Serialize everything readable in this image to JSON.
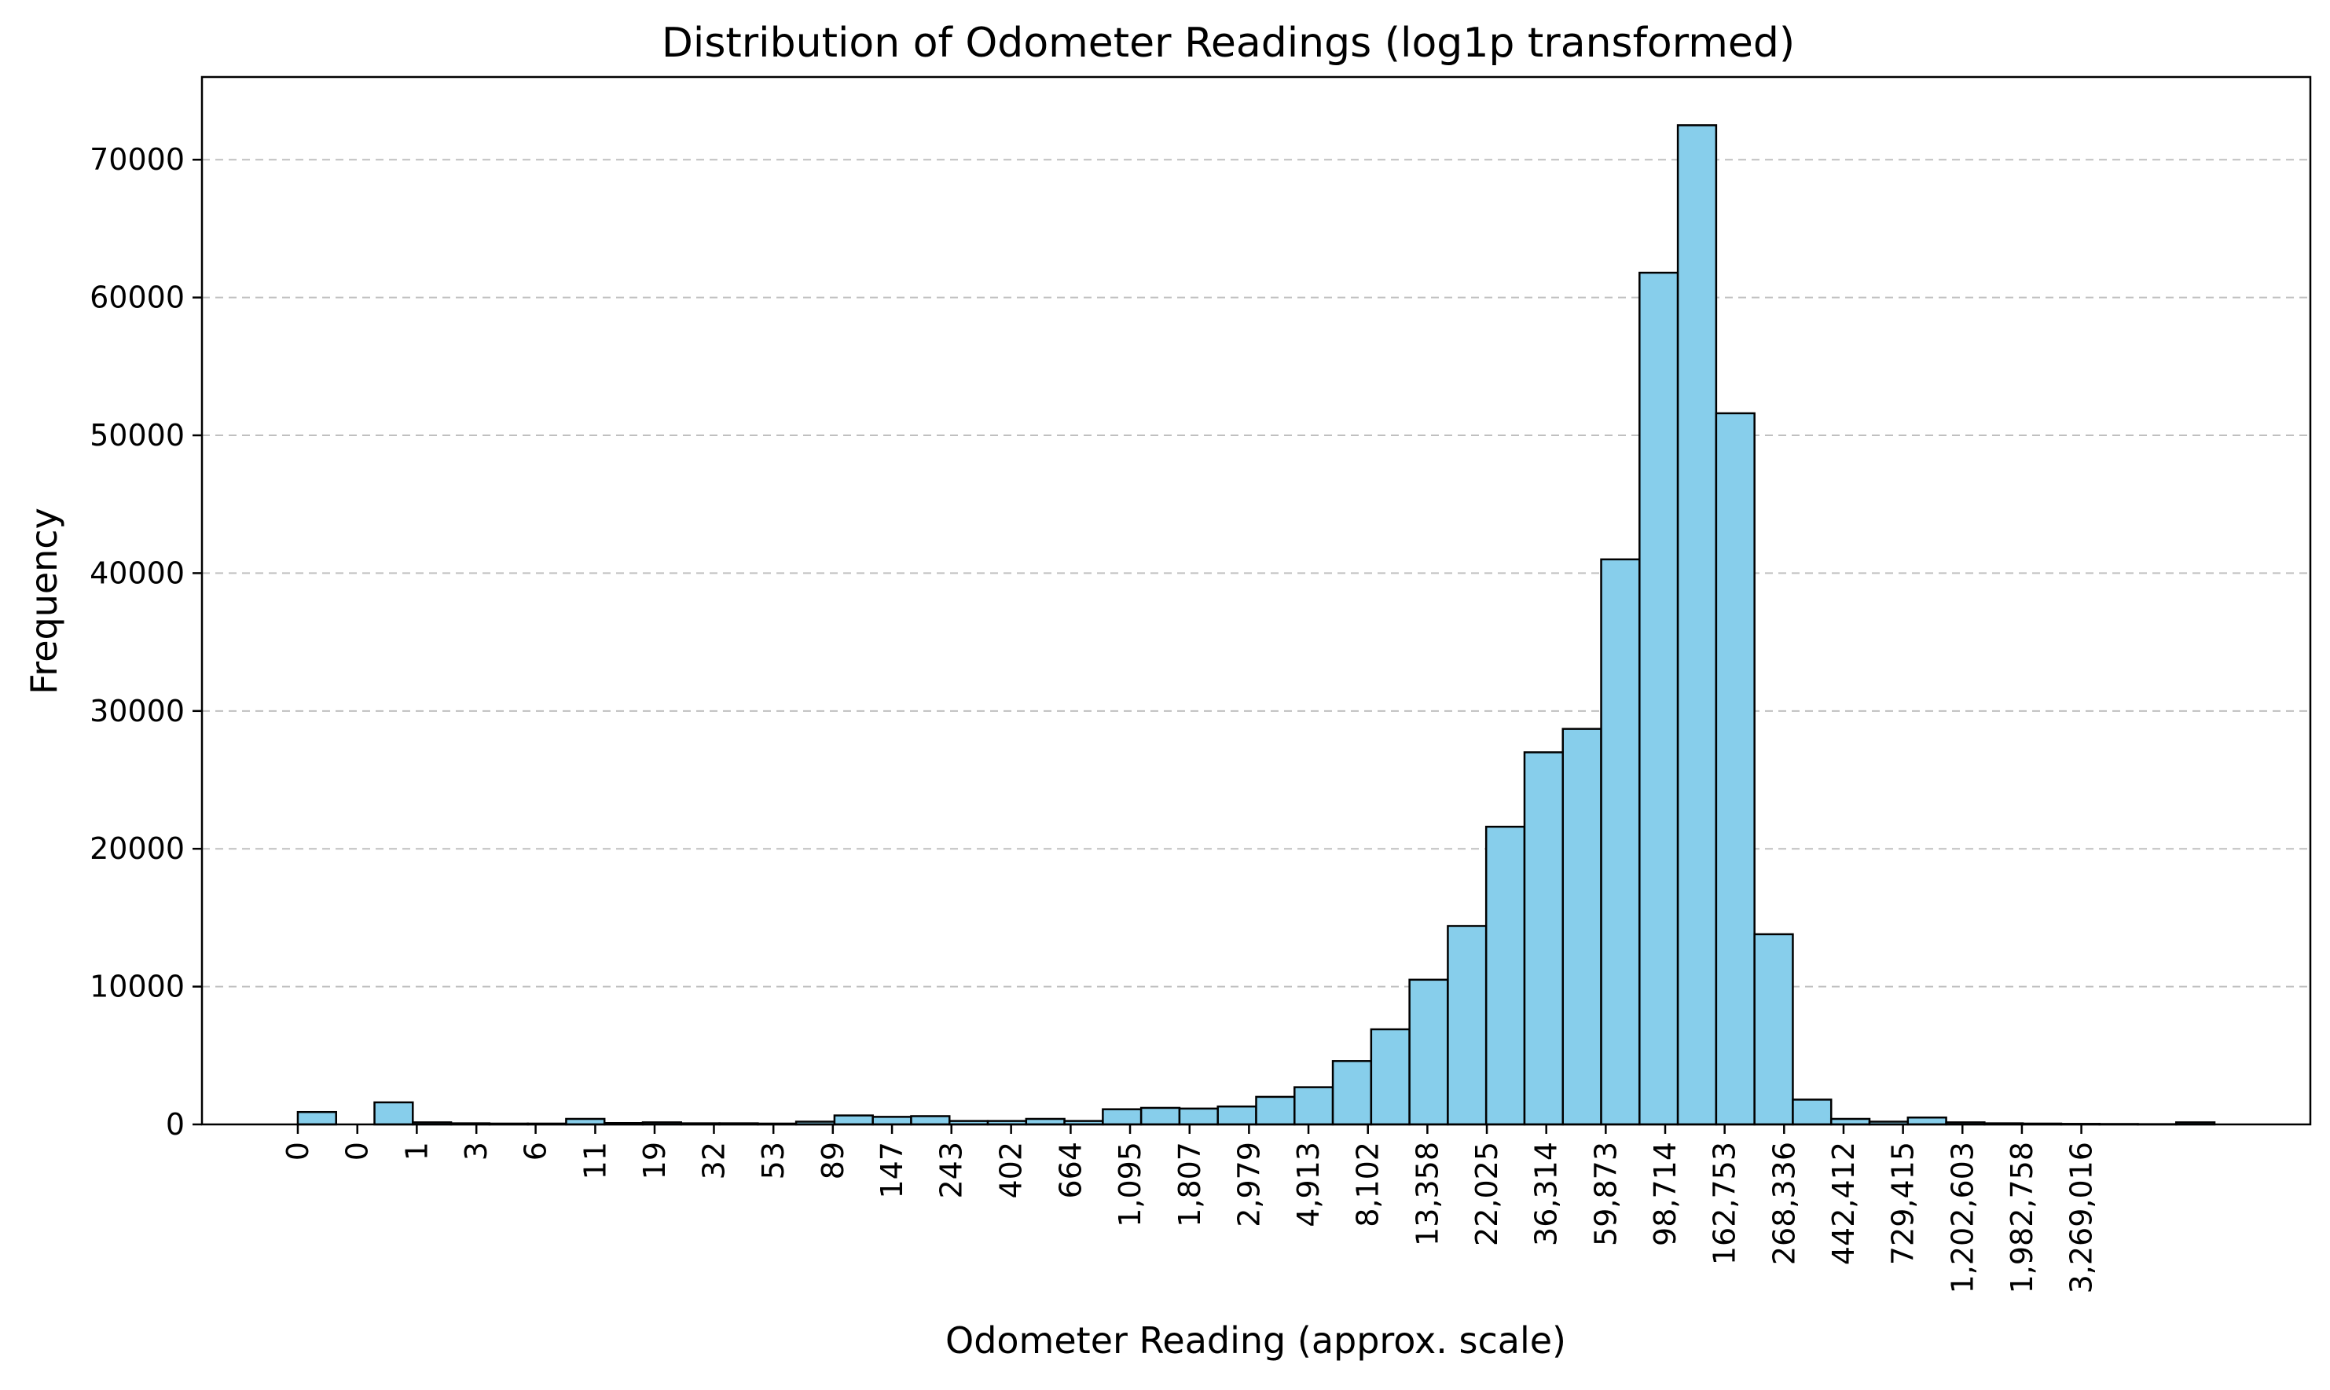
{
  "chart_data": {
    "type": "bar",
    "title": "Distribution of Odometer Readings (log1p transformed)",
    "xlabel": "Odometer Reading (approx. scale)",
    "ylabel": "Frequency",
    "x_scale": "log1p",
    "ylim": [
      0,
      76000
    ],
    "yticks": [
      0,
      10000,
      20000,
      30000,
      40000,
      50000,
      60000,
      70000
    ],
    "xticks": [
      {
        "label": "0",
        "value": 0
      },
      {
        "label": "0",
        "value": 0.65
      },
      {
        "label": "1",
        "value": 1.72
      },
      {
        "label": "3",
        "value": 3.49
      },
      {
        "label": "6",
        "value": 6.39
      },
      {
        "label": "11",
        "value": 11.2
      },
      {
        "label": "19",
        "value": 19.1
      },
      {
        "label": "32",
        "value": 32.1
      },
      {
        "label": "53",
        "value": 53.6
      },
      {
        "label": "89",
        "value": 89.0
      },
      {
        "label": "147",
        "value": 147
      },
      {
        "label": "243",
        "value": 243
      },
      {
        "label": "402",
        "value": 402
      },
      {
        "label": "664",
        "value": 664
      },
      {
        "label": "1,095",
        "value": 1095
      },
      {
        "label": "1,807",
        "value": 1807
      },
      {
        "label": "2,979",
        "value": 2979
      },
      {
        "label": "4,913",
        "value": 4913
      },
      {
        "label": "8,102",
        "value": 8102
      },
      {
        "label": "13,358",
        "value": 13358
      },
      {
        "label": "22,025",
        "value": 22025
      },
      {
        "label": "36,314",
        "value": 36314
      },
      {
        "label": "59,873",
        "value": 59873
      },
      {
        "label": "98,714",
        "value": 98714
      },
      {
        "label": "162,753",
        "value": 162753
      },
      {
        "label": "268,336",
        "value": 268336
      },
      {
        "label": "442,412",
        "value": 442412
      },
      {
        "label": "729,415",
        "value": 729415
      },
      {
        "label": "1,202,603",
        "value": 1202603
      },
      {
        "label": "1,982,758",
        "value": 1982758
      },
      {
        "label": "3,269,016",
        "value": 3269016
      }
    ],
    "bins_log1p": {
      "start": 0,
      "end": 16.12,
      "count": 50
    },
    "values": [
      900,
      0,
      1600,
      150,
      80,
      60,
      60,
      400,
      100,
      150,
      80,
      80,
      60,
      200,
      650,
      550,
      600,
      250,
      250,
      400,
      250,
      1100,
      1200,
      1150,
      1300,
      2000,
      2700,
      4600,
      6900,
      10500,
      14400,
      21600,
      27000,
      28700,
      41000,
      61800,
      72500,
      51600,
      13800,
      1800,
      400,
      200,
      500,
      150,
      80,
      60,
      40,
      30,
      20,
      150
    ],
    "grid": {
      "axis": "y",
      "style": "dashed"
    },
    "colors": {
      "bar_fill": "#87ceeb",
      "bar_edge": "#000000",
      "grid": "#c0c0c0"
    }
  }
}
